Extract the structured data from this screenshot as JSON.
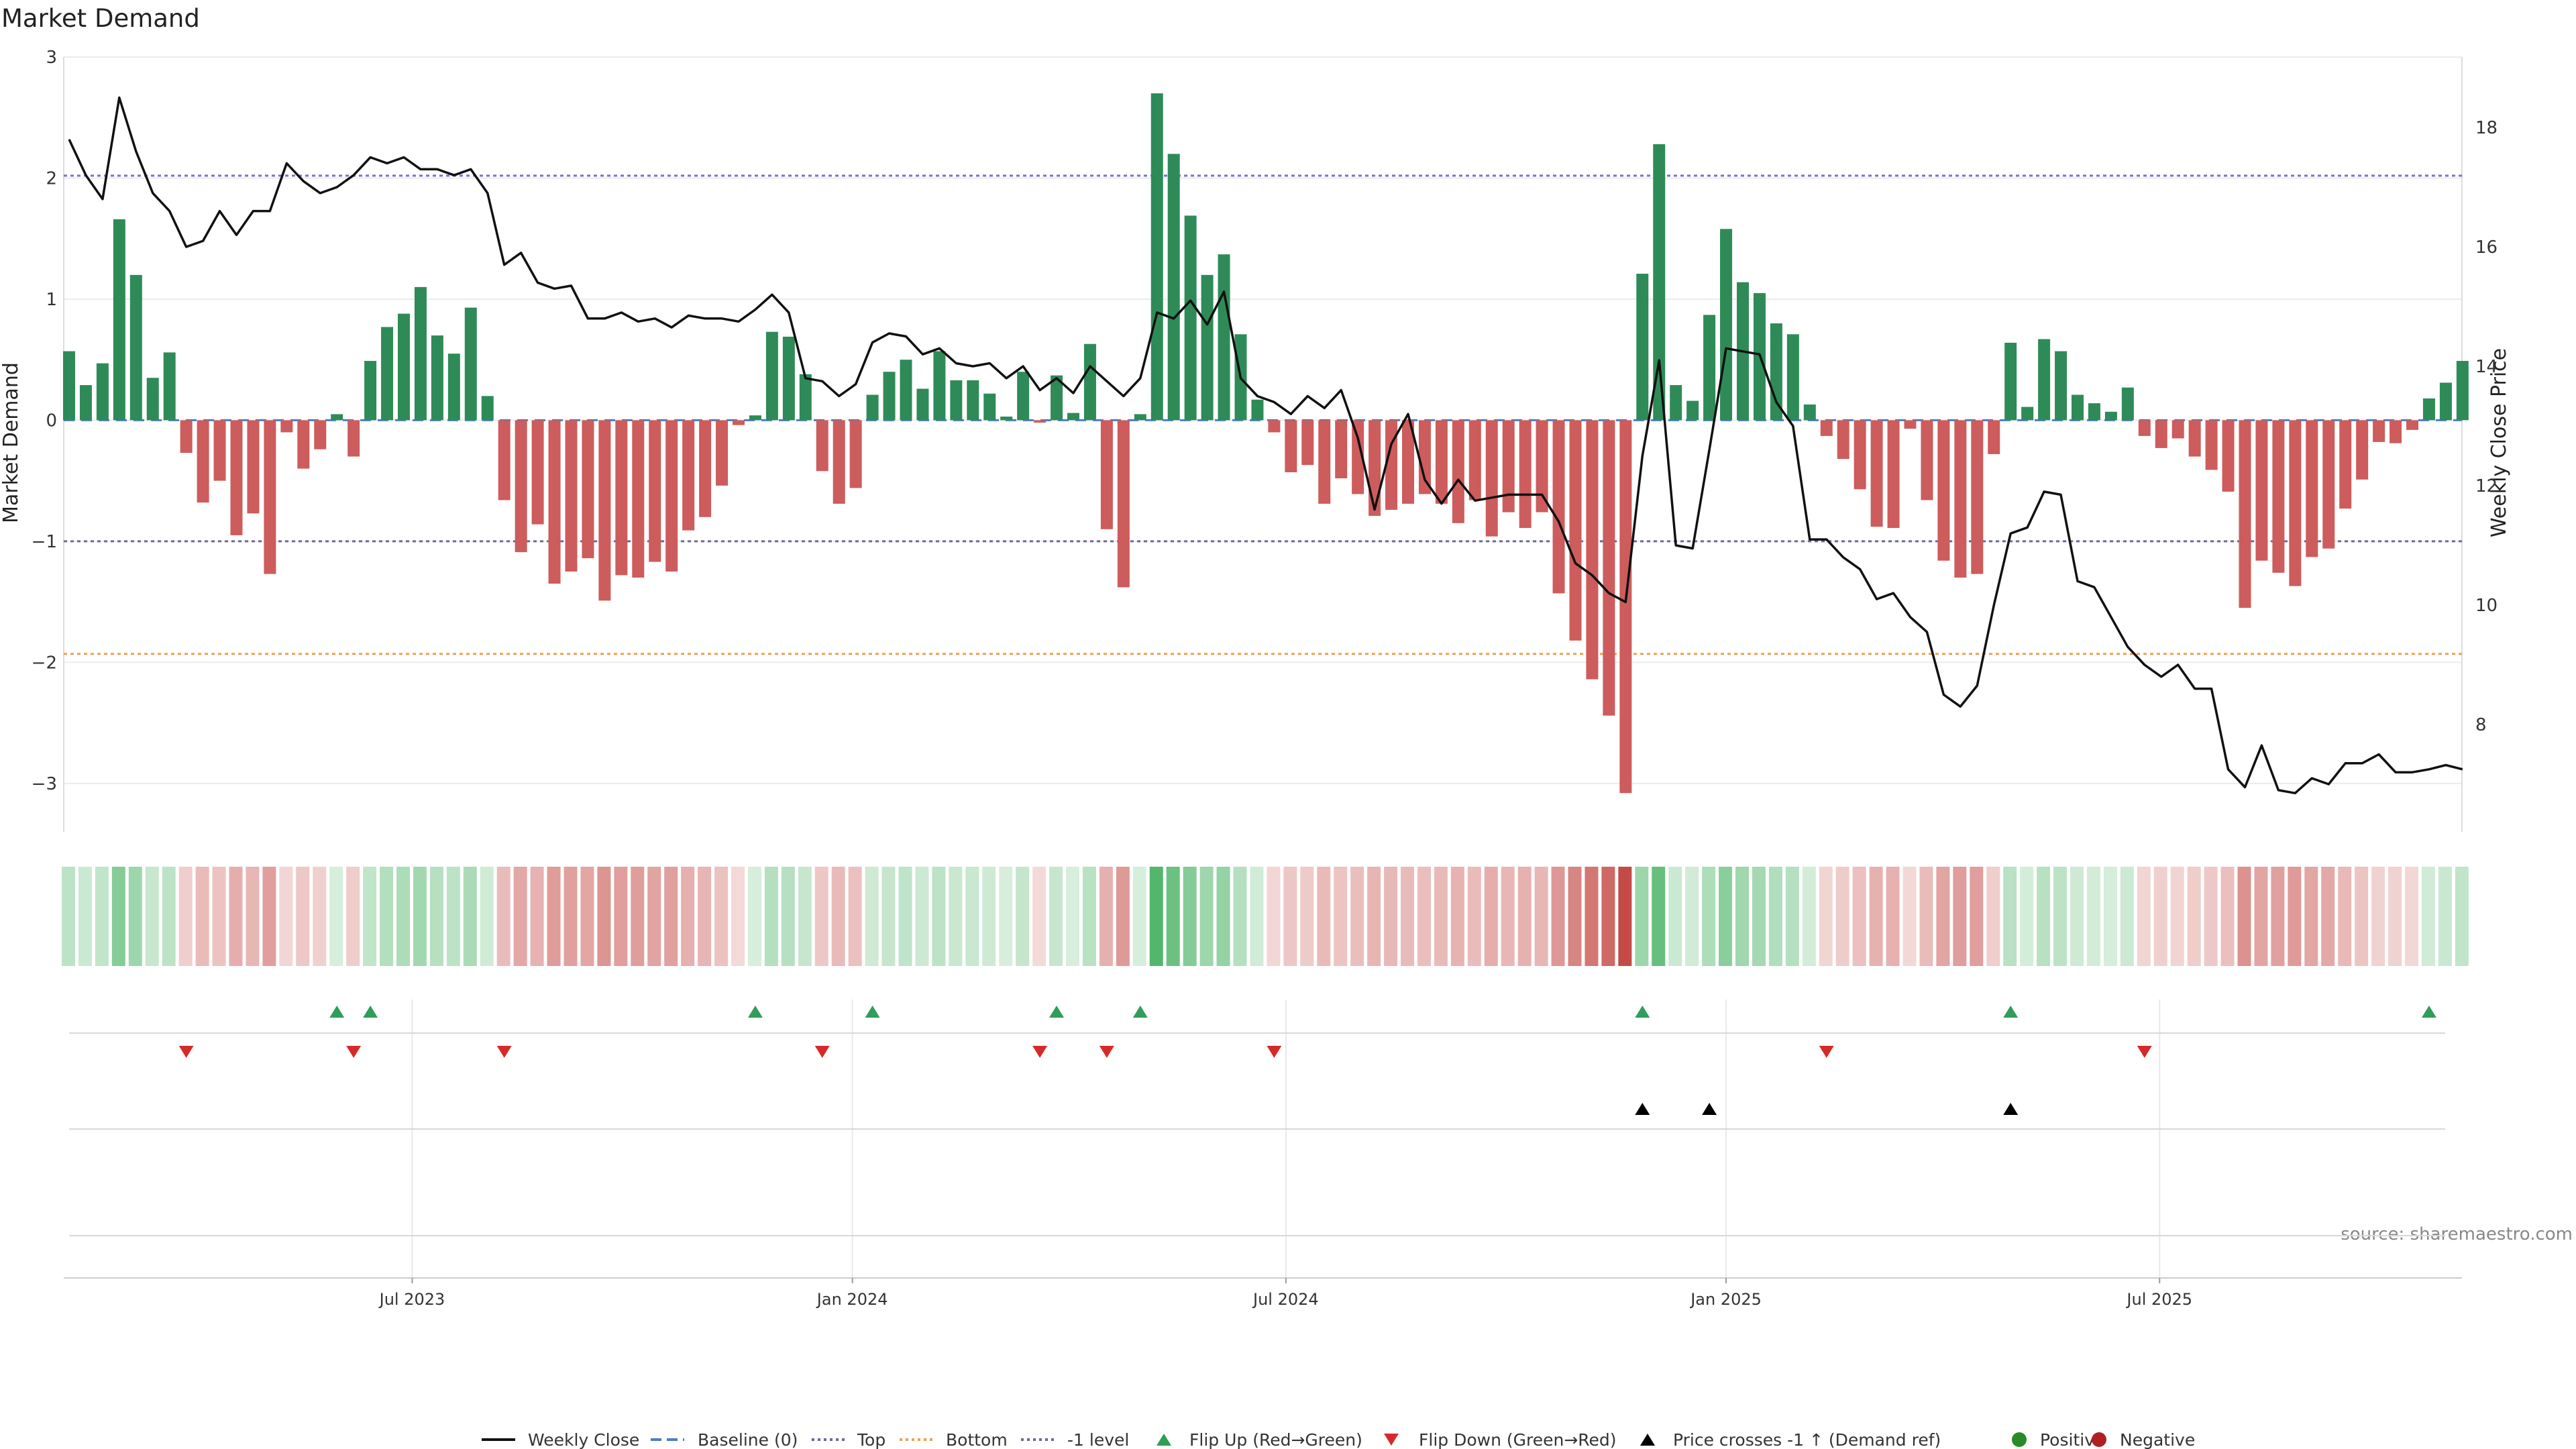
{
  "chart_data": {
    "type": "bar",
    "title": "Market Demand",
    "ylabel_left": "Market Demand",
    "ylabel_right": "Weekly Close Price",
    "source": "source: sharemaestro.com",
    "left_axis": {
      "ylim": [
        -3.4,
        3.0
      ],
      "ticks": [
        3,
        2,
        1,
        0,
        -1,
        -2,
        -3
      ],
      "tick_labels": [
        "3",
        "2",
        "1",
        "0",
        "−1",
        "−2",
        "−3"
      ]
    },
    "right_axis": {
      "ylim": [
        6.5,
        19.5
      ],
      "ticks": [
        18,
        16,
        14,
        12,
        10,
        8
      ],
      "tick_labels": [
        "18",
        "16",
        "14",
        "12",
        "10",
        "8"
      ]
    },
    "x_axis": {
      "labels": [
        "Jul 2023",
        "Jan 2024",
        "Jul 2024",
        "Jan 2025",
        "Jul 2025"
      ],
      "label_week_index": [
        20.5,
        46.8,
        72.7,
        99.0,
        124.9
      ]
    },
    "reference_lines": [
      {
        "name": "Top",
        "value": 2.02,
        "color": "#7b6fd6"
      },
      {
        "name": "Bottom",
        "value": -1.93,
        "color": "#f0a050"
      },
      {
        "name": "-1 level",
        "value": -1.0,
        "color": "#6a6a9a"
      }
    ],
    "demand": [
      0.57,
      0.29,
      0.47,
      1.66,
      1.2,
      0.35,
      0.56,
      -0.27,
      -0.68,
      -0.5,
      -0.95,
      -0.77,
      -1.27,
      -0.1,
      -0.4,
      -0.24,
      0.05,
      -0.3,
      0.49,
      0.77,
      0.88,
      1.1,
      0.7,
      0.55,
      0.93,
      0.2,
      -0.66,
      -1.09,
      -0.86,
      -1.35,
      -1.25,
      -1.14,
      -1.49,
      -1.28,
      -1.3,
      -1.17,
      -1.25,
      -0.91,
      -0.8,
      -0.54,
      -0.04,
      0.04,
      0.73,
      0.69,
      0.38,
      -0.42,
      -0.69,
      -0.56,
      0.21,
      0.4,
      0.5,
      0.26,
      0.57,
      0.33,
      0.33,
      0.22,
      0.03,
      0.4,
      -0.02,
      0.37,
      0.06,
      0.63,
      -0.9,
      -1.38,
      0.05,
      2.7,
      2.2,
      1.69,
      1.2,
      1.37,
      0.71,
      0.17,
      -0.1,
      -0.43,
      -0.37,
      -0.69,
      -0.48,
      -0.61,
      -0.79,
      -0.74,
      -0.69,
      -0.61,
      -0.69,
      -0.85,
      -0.66,
      -0.96,
      -0.76,
      -0.89,
      -0.76,
      -1.43,
      -1.82,
      -2.14,
      -2.44,
      -3.08,
      1.21,
      2.28,
      0.29,
      0.16,
      0.87,
      1.58,
      1.14,
      1.05,
      0.8,
      0.71,
      0.13,
      -0.13,
      -0.32,
      -0.57,
      -0.88,
      -0.89,
      -0.07,
      -0.66,
      -1.16,
      -1.3,
      -1.27,
      -0.28,
      0.64,
      0.11,
      0.67,
      0.57,
      0.21,
      0.14,
      0.07,
      0.27,
      -0.13,
      -0.23,
      -0.15,
      -0.3,
      -0.41,
      -0.59,
      -1.55,
      -1.16,
      -1.26,
      -1.37,
      -1.13,
      -1.06,
      -0.73,
      -0.49,
      -0.18,
      -0.19,
      -0.08,
      0.18,
      0.31,
      0.49
    ],
    "close": [
      17.8,
      17.2,
      16.8,
      18.5,
      17.6,
      16.9,
      16.6,
      16.0,
      16.1,
      16.6,
      16.2,
      16.6,
      16.6,
      17.4,
      17.1,
      16.9,
      17.0,
      17.2,
      17.5,
      17.4,
      17.5,
      17.3,
      17.3,
      17.2,
      17.3,
      16.9,
      15.7,
      15.9,
      15.4,
      15.3,
      15.35,
      14.8,
      14.8,
      14.9,
      14.75,
      14.8,
      14.65,
      14.85,
      14.8,
      14.8,
      14.75,
      14.95,
      15.2,
      14.9,
      13.8,
      13.75,
      13.5,
      13.7,
      14.4,
      14.55,
      14.5,
      14.2,
      14.3,
      14.05,
      14.0,
      14.05,
      13.8,
      14.0,
      13.6,
      13.8,
      13.55,
      14.0,
      13.75,
      13.5,
      13.8,
      14.9,
      14.8,
      15.1,
      14.7,
      15.25,
      13.8,
      13.5,
      13.4,
      13.2,
      13.5,
      13.3,
      13.6,
      12.8,
      11.6,
      12.7,
      13.2,
      12.1,
      11.7,
      12.1,
      11.75,
      11.8,
      11.85,
      11.85,
      11.85,
      11.4,
      10.7,
      10.5,
      10.2,
      10.05,
      12.5,
      14.1,
      11.0,
      10.95,
      12.6,
      14.3,
      14.25,
      14.2,
      13.4,
      13.0,
      11.1,
      11.1,
      10.8,
      10.6,
      10.1,
      10.2,
      9.8,
      9.55,
      8.5,
      8.3,
      8.65,
      10.0,
      11.2,
      11.3,
      11.9,
      11.85,
      10.4,
      10.3,
      9.8,
      9.3,
      9.0,
      8.8,
      9.0,
      8.6,
      8.6,
      7.25,
      6.95,
      7.65,
      6.9,
      6.85,
      7.1,
      7.0,
      7.35,
      7.35,
      7.5,
      7.2,
      7.2,
      7.25,
      7.32,
      7.25
    ],
    "flip_up_weeks": [
      16,
      18,
      41,
      48,
      59,
      64,
      94,
      116,
      141
    ],
    "flip_down_weeks": [
      7,
      17,
      26,
      45,
      58,
      62,
      72,
      105,
      124
    ],
    "price_crosses_weeks": [
      94,
      98,
      116
    ],
    "legend": [
      "Weekly Close",
      "Baseline (0)",
      "Top",
      "Bottom",
      "-1 level",
      "Flip Up (Red→Green)",
      "Flip Down (Green→Red)",
      "Price crosses -1 ↑ (Demand ref)",
      "Positive",
      "Negative"
    ],
    "colors": {
      "positive": "#2e8b57",
      "negative": "#cd5c5c",
      "close": "#111111",
      "top": "#7b6fd6",
      "bottom": "#f0a050",
      "minus1": "#6a6a9a",
      "baseline": "#4a7fc8",
      "flip_up": "#2e9e58",
      "flip_down": "#d62a2a",
      "crosses": "#000000",
      "positive_dot": "#2a8a2a",
      "negative_dot": "#b02020"
    }
  }
}
